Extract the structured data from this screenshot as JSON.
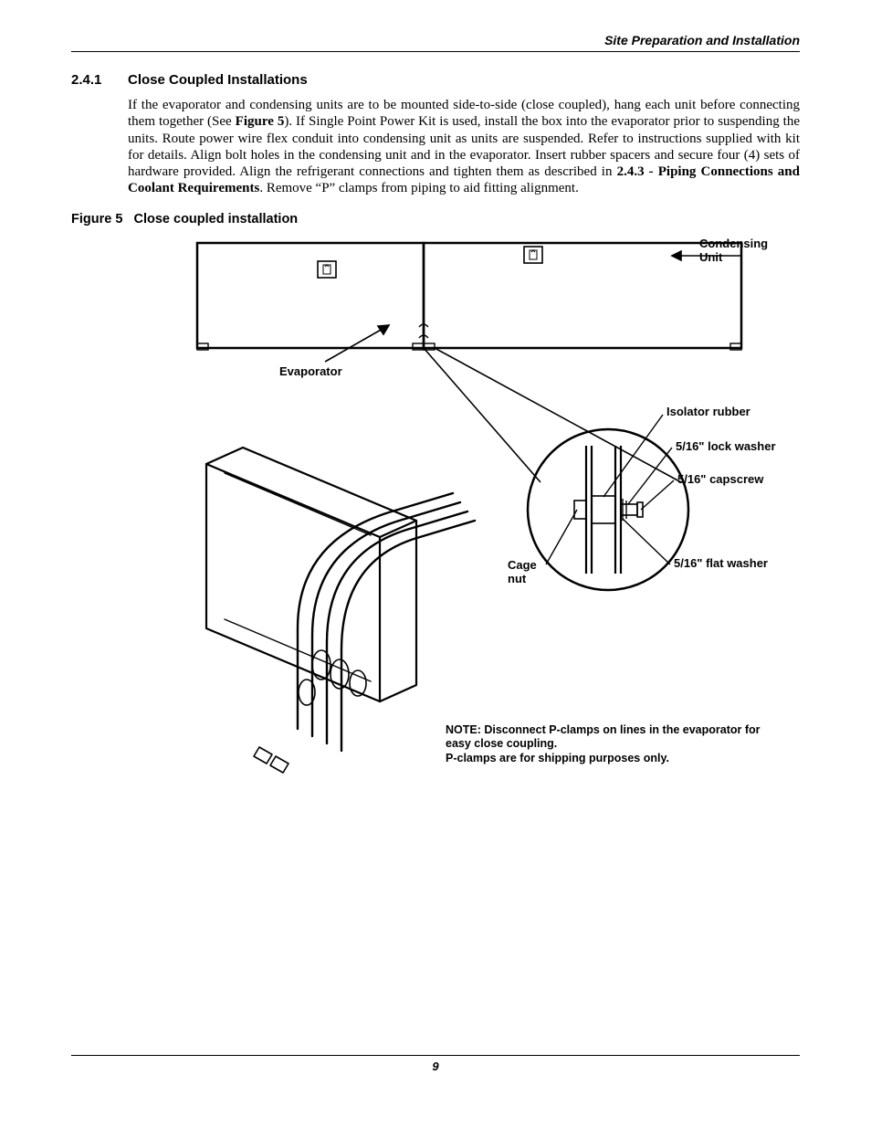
{
  "header": {
    "right_text": "Site Preparation and Installation"
  },
  "section": {
    "number": "2.4.1",
    "title": "Close Coupled Installations",
    "body_pre": "If the evaporator and condensing units are to be mounted side-to-side (close coupled), hang each unit before connecting them together (See ",
    "body_ref1": "Figure 5",
    "body_mid": "). If Single Point Power Kit is used, install the box into the evaporator prior to suspending the units. Route power wire flex conduit into condensing unit as units are suspended. Refer to instructions supplied with kit for details. Align bolt holes in the condensing unit and in the evaporator. Insert rubber spacers and secure four (4) sets of hardware provided. Align the refrigerant connections and tighten them as described in ",
    "body_ref2": "2.4.3 - Piping Connections and Coolant Requirements",
    "body_post": ". Remove “P” clamps from piping to aid fitting alignment."
  },
  "figure": {
    "label": "Figure 5",
    "title": "Close coupled installation",
    "callouts": {
      "condensing_unit": "Condensing\nUnit",
      "evaporator": "Evaporator",
      "isolator_rubber": "Isolator rubber",
      "lock_washer": "5/16\" lock washer",
      "capscrew": "5/16\" capscrew",
      "flat_washer": "5/16\" flat washer",
      "cage_nut": "Cage\nnut"
    },
    "note": {
      "line1": "NOTE: Disconnect P-clamps on lines in the evaporator for easy close coupling.",
      "line2": "P-clamps are for shipping purposes only."
    },
    "style": {
      "stroke": "#000000",
      "stroke_heavy": 2.5,
      "stroke_light": 1.4,
      "font_bold": "Arial",
      "font_size_callout": 13
    }
  },
  "footer": {
    "page_number": "9"
  }
}
